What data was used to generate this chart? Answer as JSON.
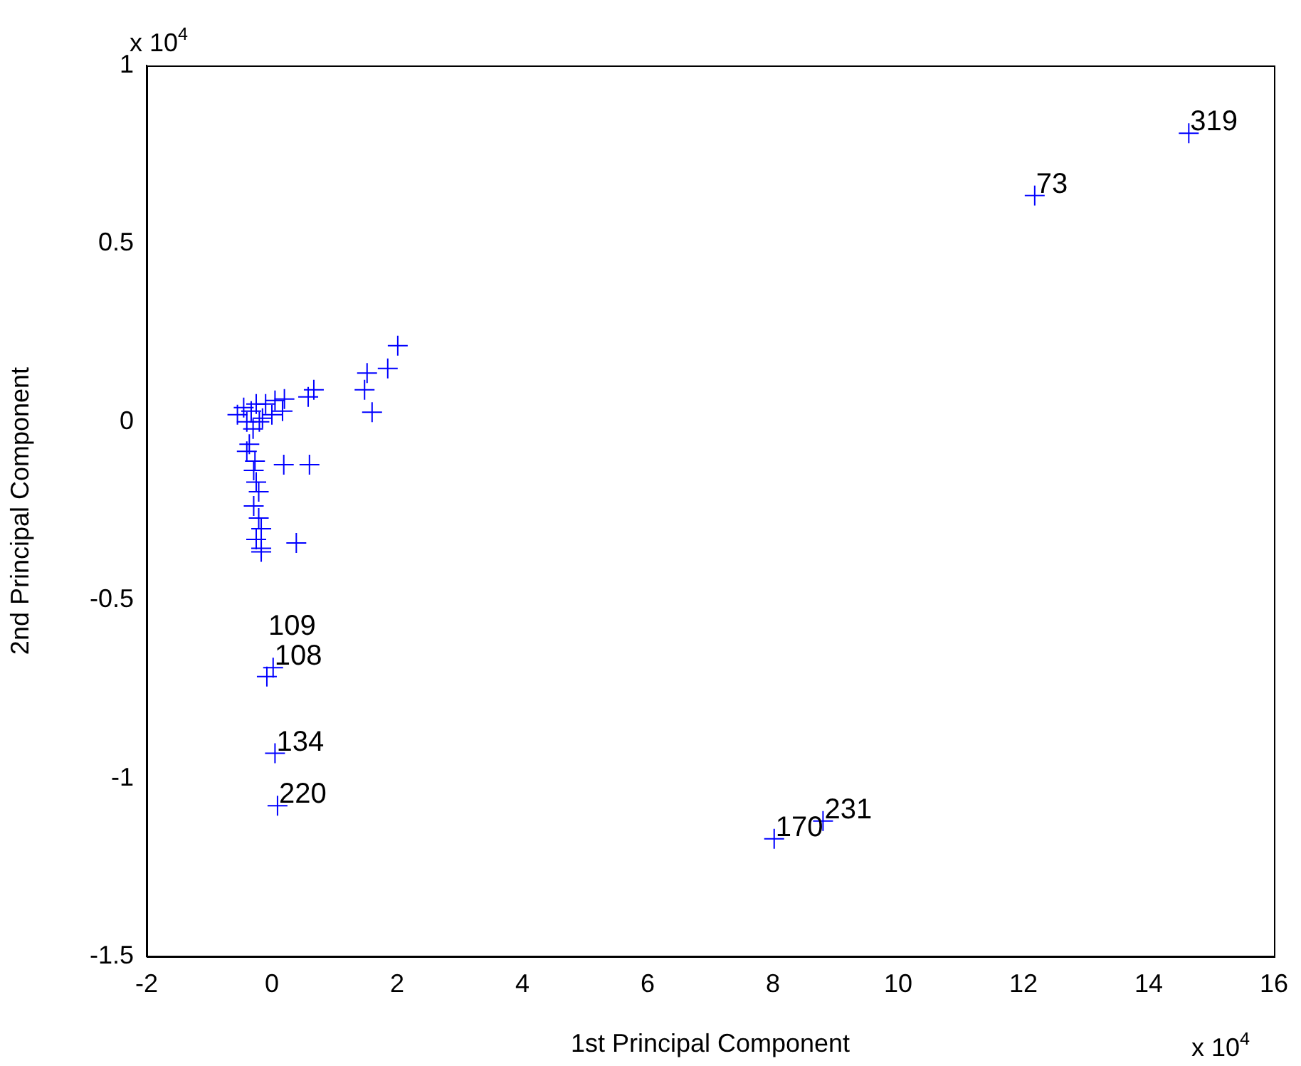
{
  "chart_data": {
    "type": "scatter",
    "xlabel": "1st Principal Component",
    "ylabel": "2nd Principal Component",
    "xlim": [
      -2,
      16
    ],
    "xticks": [
      -2,
      0,
      2,
      4,
      6,
      8,
      10,
      12,
      14,
      16
    ],
    "ylim": [
      -1.5,
      1
    ],
    "yticks": [
      -1.5,
      -1,
      -0.5,
      0,
      0.5,
      1
    ],
    "grid": false,
    "legend": false,
    "marker": "cross",
    "series": [
      {
        "color": "#0000ff",
        "x": [
          14.64,
          12.18,
          8.8,
          8.02,
          0.02,
          -0.08,
          0.05,
          0.09,
          2.01,
          1.85,
          1.52,
          1.48,
          1.6,
          0.67,
          0.58,
          0.2,
          0.17,
          -0.33,
          -0.45,
          -0.55,
          -0.2,
          -0.1,
          0.0,
          0.05,
          -0.4,
          -0.25,
          -0.3,
          -0.15,
          0.19,
          0.6,
          0.39,
          -0.36,
          -0.4,
          -0.27,
          -0.29,
          -0.25,
          -0.21,
          -0.29,
          -0.21,
          -0.17,
          -0.25,
          -0.17,
          -0.17
        ],
        "values": [
          0.81,
          0.635,
          -1.12,
          -1.17,
          -0.69,
          -0.715,
          -0.93,
          -1.077,
          0.214,
          0.15,
          0.137,
          0.09,
          0.027,
          0.09,
          0.07,
          0.064,
          0.03,
          0.03,
          0.04,
          0.02,
          0.0,
          0.05,
          0.02,
          0.06,
          0.0,
          0.05,
          -0.02,
          0.01,
          -0.12,
          -0.12,
          -0.34,
          -0.063,
          -0.083,
          -0.11,
          -0.136,
          -0.169,
          -0.196,
          -0.236,
          -0.27,
          -0.3,
          -0.33,
          -0.355,
          -0.365
        ]
      }
    ],
    "annotations": [
      "x 10$^{4}$",
      "x 10$^{4}$",
      {
        "text": "319",
        "x": 14.64,
        "y": 0.81
      },
      {
        "text": "73",
        "x": 12.18,
        "y": 0.635
      },
      {
        "text": "231",
        "x": 8.8,
        "y": -1.12
      },
      {
        "text": "170",
        "x": 8.02,
        "y": -1.17
      },
      {
        "text": "108",
        "x": 0.02,
        "y": -0.69
      },
      {
        "text": "109",
        "x": -0.08,
        "y": -0.715
      },
      {
        "text": "134",
        "x": 0.05,
        "y": -0.93
      },
      {
        "text": "220",
        "x": 0.09,
        "y": -1.077
      }
    ]
  }
}
